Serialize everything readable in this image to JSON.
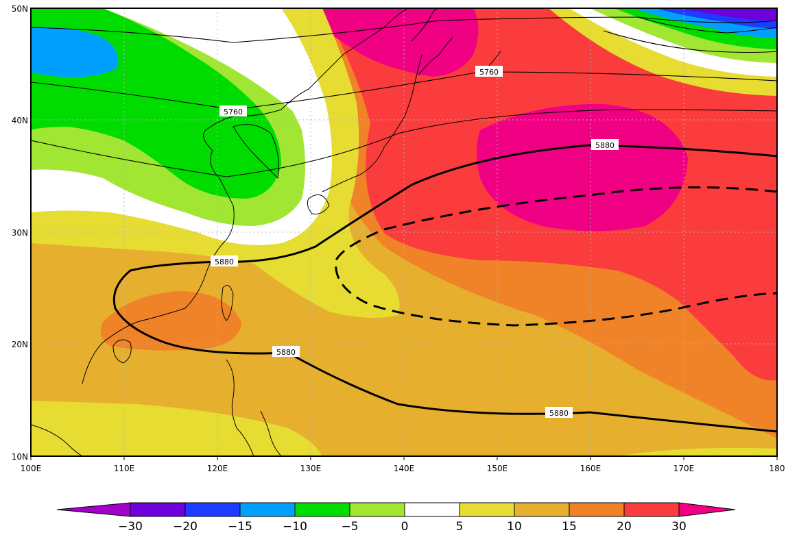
{
  "colors": {
    "c_lt_m30": "#a000c8",
    "c_m30_m20": "#6e00dc",
    "c_m20_m15": "#1e3cff",
    "c_m15_m10": "#00a0ff",
    "c_m10_m5": "#00dc00",
    "c_m5_0": "#a0e632",
    "c_0_5": "#ffffff",
    "c_5_10": "#e6dc32",
    "c_10_15": "#e6af2d",
    "c_15_20": "#f08228",
    "c_20_30": "#fa3c3c",
    "c_gt_30": "#f00082"
  },
  "axes": {
    "x_ticks": [
      "100E",
      "110E",
      "120E",
      "130E",
      "140E",
      "150E",
      "160E",
      "170E",
      "180"
    ],
    "y_ticks": [
      "10N",
      "20N",
      "30N",
      "40N",
      "50N"
    ]
  },
  "colorbar": {
    "labels": [
      "−30",
      "−20",
      "−15",
      "−10",
      "−5",
      "0",
      "5",
      "10",
      "15",
      "20",
      "30"
    ]
  },
  "contour_labels": {
    "c5760_a": "5760",
    "c5760_b": "5760",
    "c5880_a": "5880",
    "c5880_b": "5880",
    "c5880_c": "5880",
    "c5880_d": "5880"
  }
}
